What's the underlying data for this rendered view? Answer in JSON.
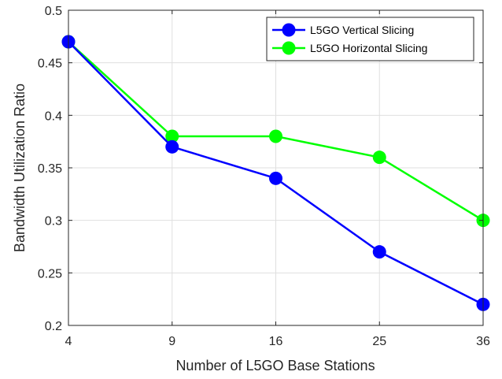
{
  "chart_data": {
    "type": "line",
    "x": [
      4,
      9,
      16,
      25,
      36
    ],
    "x_tick_labels": [
      "4",
      "9",
      "16",
      "25",
      "36"
    ],
    "y_tick_labels": [
      "0.2",
      "0.25",
      "0.3",
      "0.35",
      "0.4",
      "0.45",
      "0.5"
    ],
    "y_ticks": [
      0.2,
      0.25,
      0.3,
      0.35,
      0.4,
      0.45,
      0.5
    ],
    "ylim": [
      0.2,
      0.5
    ],
    "xlabel": "Number of L5GO Base Stations",
    "ylabel": "Bandwidth Utilization Ratio",
    "grid": true,
    "legend_position": "top-right",
    "series": [
      {
        "name": "L5GO Vertical Slicing",
        "values": [
          0.47,
          0.37,
          0.34,
          0.27,
          0.22
        ],
        "color": "#0000ff"
      },
      {
        "name": "L5GO Horizontal Slicing",
        "values": [
          0.47,
          0.38,
          0.38,
          0.36,
          0.3
        ],
        "color": "#00ff00"
      }
    ]
  }
}
